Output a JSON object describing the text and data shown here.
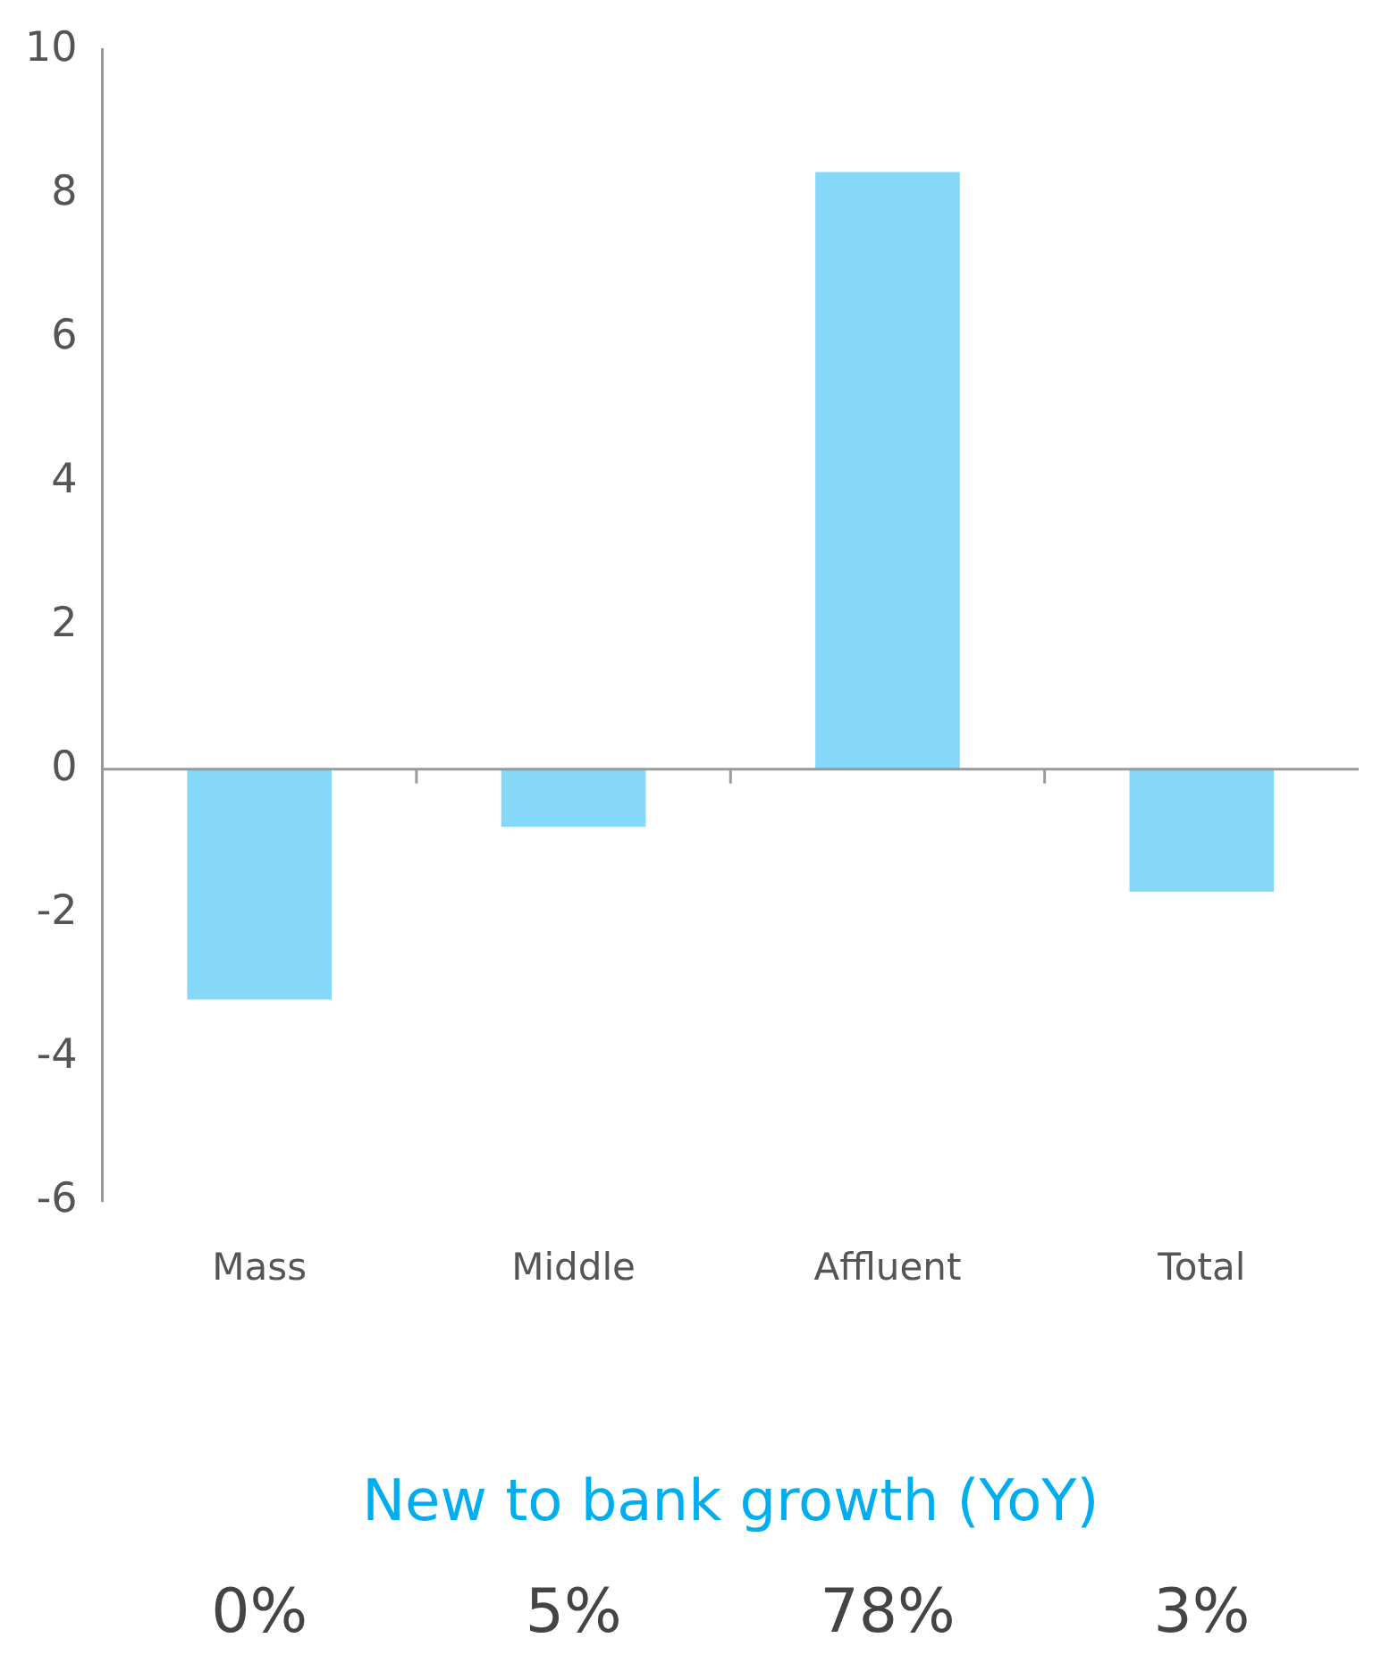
{
  "chart_data": {
    "type": "bar",
    "categories": [
      "Mass",
      "Middle",
      "Affluent",
      "Total"
    ],
    "values": [
      -3.2,
      -0.8,
      8.3,
      -1.7
    ],
    "color": "#85d8f8",
    "ylim": [
      -6,
      10
    ],
    "yticks": [
      -6,
      -4,
      -2,
      0,
      2,
      4,
      6,
      8,
      10
    ],
    "grid": false,
    "legend": false,
    "ref_lines": [
      {
        "axis": "y",
        "value": 0,
        "color": "#9a9a9a"
      }
    ],
    "annotations": [
      "New to bank growth (YoY)",
      "0%",
      "5%",
      "78%",
      "3%"
    ]
  }
}
